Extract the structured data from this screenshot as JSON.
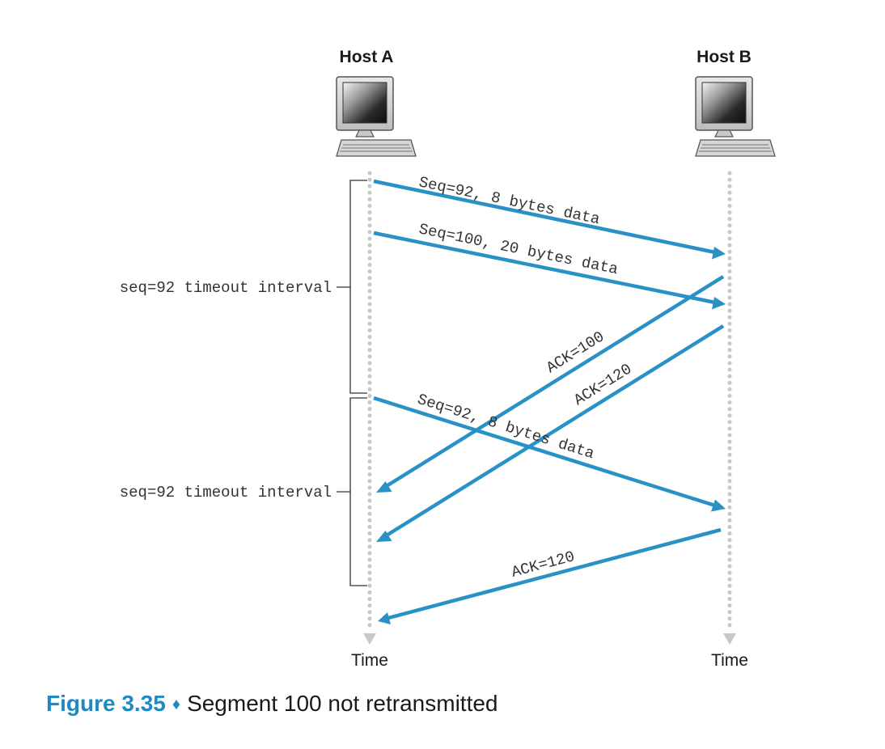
{
  "hosts": {
    "a": {
      "label": "Host A"
    },
    "b": {
      "label": "Host B"
    }
  },
  "time_labels": {
    "a": "Time",
    "b": "Time"
  },
  "timeouts": [
    {
      "label": "seq=92 timeout interval"
    },
    {
      "label": "seq=92 timeout interval"
    }
  ],
  "messages": [
    {
      "label": "Seq=92, 8 bytes data",
      "direction": "A-to-B"
    },
    {
      "label": "Seq=100, 20 bytes data",
      "direction": "A-to-B"
    },
    {
      "label": "ACK=100",
      "direction": "B-to-A"
    },
    {
      "label": "ACK=120",
      "direction": "B-to-A"
    },
    {
      "label": "Seq=92, 8 bytes data",
      "direction": "A-to-B"
    },
    {
      "label": "ACK=120",
      "direction": "B-to-A"
    }
  ],
  "caption": {
    "figure_number": "Figure 3.35",
    "separator": "♦",
    "text": "Segment 100 not retransmitted"
  },
  "colors": {
    "arrow": "#2a91c7",
    "timeline": "#c8c8c8",
    "figure_accent": "#1f8ac2"
  }
}
